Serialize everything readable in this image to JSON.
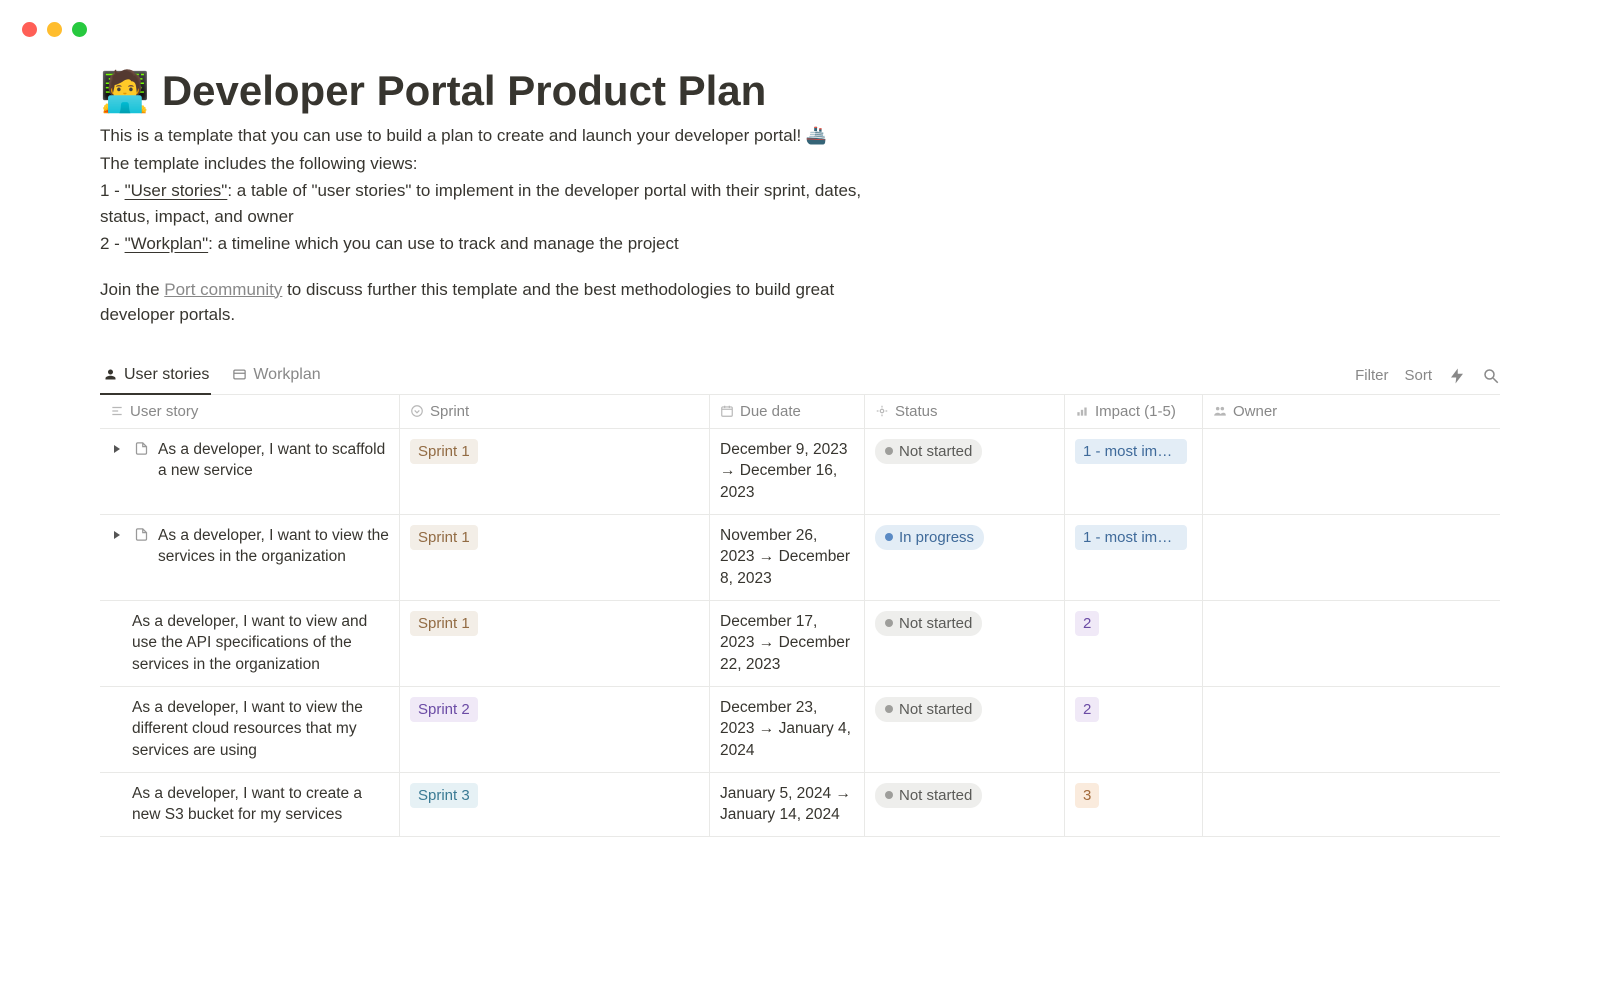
{
  "traffic_lights": {
    "red": "#ff5f56",
    "yellow": "#ffbd2e",
    "green": "#27c93f"
  },
  "header": {
    "icon": "🧑‍💻",
    "title": "Developer Portal Product Plan",
    "desc_intro": "This is a template that you can use to build a plan to create and launch your developer portal! 🚢",
    "desc_views_intro": "The template includes the following views:",
    "desc_v1_prefix": "1 - ",
    "desc_v1_link": "\"User stories\"",
    "desc_v1_suffix": ": a table of \"user stories\" to implement in the developer portal with their sprint, dates, status, impact, and owner",
    "desc_v2_prefix": "2 - ",
    "desc_v2_link": "\"Workplan\"",
    "desc_v2_suffix": ": a timeline which you can use to track and manage the project",
    "join_prefix": "Join the ",
    "join_link": "Port community",
    "join_suffix": " to discuss further this template and the best methodologies to build great developer portals."
  },
  "tabs": {
    "active": {
      "icon": "person",
      "label": "User stories"
    },
    "inactive": {
      "icon": "table",
      "label": "Workplan"
    }
  },
  "toolbar": {
    "filter": "Filter",
    "sort": "Sort"
  },
  "columns": {
    "story": "User story",
    "sprint": "Sprint",
    "due": "Due date",
    "status": "Status",
    "impact": "Impact (1-5)",
    "owner": "Owner"
  },
  "rows": [
    {
      "expandable": true,
      "story": "As a developer, I want to scaffold a new service",
      "sprint": "Sprint 1",
      "sprint_class": "sprint-1",
      "due": "December 9, 2023 → December 16, 2023",
      "status": "Not started",
      "status_class": "status-not-started",
      "impact": "1 - most impo…",
      "impact_class": "impact-1"
    },
    {
      "expandable": true,
      "story": "As a developer, I want to view the services in the organization",
      "sprint": "Sprint 1",
      "sprint_class": "sprint-1",
      "due": "November 26, 2023 → December 8, 2023",
      "status": "In progress",
      "status_class": "status-in-progress",
      "impact": "1 - most impo…",
      "impact_class": "impact-1"
    },
    {
      "expandable": false,
      "story": "As a developer, I want to view and use the API specifications of the services in the organization",
      "sprint": "Sprint 1",
      "sprint_class": "sprint-1",
      "due": "December 17, 2023 → December 22, 2023",
      "status": "Not started",
      "status_class": "status-not-started",
      "impact": "2",
      "impact_class": "impact-2"
    },
    {
      "expandable": false,
      "story": "As a developer, I want to view the different cloud resources that my services are using",
      "sprint": "Sprint 2",
      "sprint_class": "sprint-2",
      "due": "December 23, 2023 → January 4, 2024",
      "status": "Not started",
      "status_class": "status-not-started",
      "impact": "2",
      "impact_class": "impact-2"
    },
    {
      "expandable": false,
      "story": "As a developer, I want to create a new S3 bucket for my services",
      "sprint": "Sprint 3",
      "sprint_class": "sprint-3",
      "due": "January 5, 2024 → January 14, 2024",
      "status": "Not started",
      "status_class": "status-not-started",
      "impact": "3",
      "impact_class": "impact-3"
    }
  ]
}
